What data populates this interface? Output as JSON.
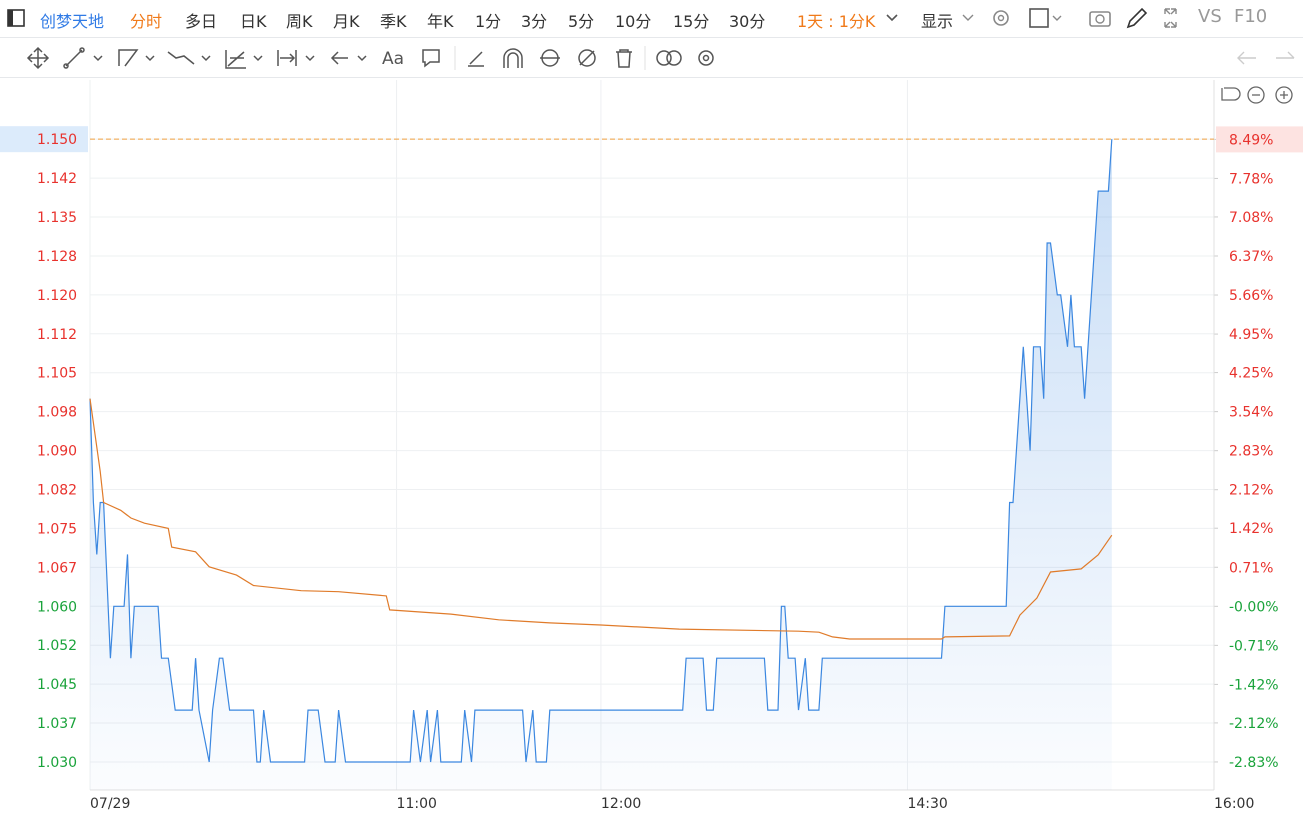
{
  "toolbar": {
    "symbol": "创梦天地",
    "periods": [
      "分时",
      "多日",
      "日K",
      "周K",
      "月K",
      "季K",
      "年K",
      "1分",
      "3分",
      "5分",
      "10分",
      "15分",
      "30分"
    ],
    "interval": "1天 : 1分K",
    "display": "显示",
    "vs": "VS",
    "f10": "F10",
    "text_tool": "Aa"
  },
  "chart_data": {
    "type": "line",
    "xlim": [
      "09:30",
      "16:00"
    ],
    "xticks": [
      {
        "value": "09:30",
        "label": "07/29"
      },
      "11:00",
      "12:00",
      "14:30",
      "16:00"
    ],
    "ylim": [
      1.0246,
      1.1614
    ],
    "yticks": [
      {
        "value": 1.15,
        "label": "1.150"
      },
      {
        "value": 1.1425,
        "label": "1.142"
      },
      {
        "value": 1.135,
        "label": "1.135"
      },
      {
        "value": 1.1275,
        "label": "1.128"
      },
      {
        "value": 1.12,
        "label": "1.120"
      },
      {
        "value": 1.1125,
        "label": "1.112"
      },
      {
        "value": 1.105,
        "label": "1.105"
      },
      {
        "value": 1.0975,
        "label": "1.098"
      },
      {
        "value": 1.09,
        "label": "1.090"
      },
      {
        "value": 1.0825,
        "label": "1.082"
      },
      {
        "value": 1.075,
        "label": "1.075"
      },
      {
        "value": 1.0675,
        "label": "1.067"
      },
      {
        "value": 1.06,
        "label": "1.060"
      },
      {
        "value": 1.0525,
        "label": "1.052"
      },
      {
        "value": 1.045,
        "label": "1.045"
      },
      {
        "value": 1.0375,
        "label": "1.037"
      },
      {
        "value": 1.03,
        "label": "1.030"
      }
    ],
    "y2lim": [
      -3.34,
      9.57
    ],
    "y2ticks": [
      {
        "value": 8.49,
        "label": "8.49%"
      },
      {
        "value": 7.78,
        "label": "7.78%"
      },
      {
        "value": 7.08,
        "label": "7.08%"
      },
      {
        "value": 6.37,
        "label": "6.37%"
      },
      {
        "value": 5.66,
        "label": "5.66%"
      },
      {
        "value": 4.95,
        "label": "4.95%"
      },
      {
        "value": 4.25,
        "label": "4.25%"
      },
      {
        "value": 3.54,
        "label": "3.54%"
      },
      {
        "value": 2.83,
        "label": "2.83%"
      },
      {
        "value": 2.12,
        "label": "2.12%"
      },
      {
        "value": 1.42,
        "label": "1.42%"
      },
      {
        "value": 0.71,
        "label": "0.71%"
      },
      {
        "value": 0,
        "label": "-0.00%"
      },
      {
        "value": -0.71,
        "label": "-0.71%"
      },
      {
        "value": -1.42,
        "label": "-1.42%"
      },
      {
        "value": -2.12,
        "label": "-2.12%"
      },
      {
        "value": -2.83,
        "label": "-2.83%"
      }
    ],
    "up_color": "#e8322d",
    "down_color": "#1aa33b",
    "grid": true,
    "series": [
      {
        "color": "#3b87e0",
        "area": true,
        "x": [
          "09:30",
          "09:31",
          "09:32",
          "09:33",
          "09:34",
          "09:36",
          "09:37",
          "09:40",
          "09:41",
          "09:42",
          "09:43",
          "09:50",
          "09:51",
          "09:53",
          "09:55",
          "10:00",
          "10:01",
          "10:02",
          "10:05",
          "10:06",
          "10:08",
          "10:09",
          "10:11",
          "10:18",
          "10:19",
          "10:20",
          "10:21",
          "10:23",
          "10:33",
          "10:34",
          "10:37",
          "10:39",
          "10:42",
          "10:43",
          "10:45",
          "11:04",
          "11:05",
          "11:07",
          "11:09",
          "11:10",
          "11:12",
          "11:13",
          "11:19",
          "11:20",
          "11:22",
          "11:23",
          "11:37",
          "11:38",
          "11:40",
          "11:41",
          "11:44",
          "11:45",
          "13:24",
          "13:25",
          "13:30",
          "13:31",
          "13:33",
          "13:34",
          "13:48",
          "13:49",
          "13:52",
          "13:53",
          "13:54",
          "13:55",
          "13:57",
          "13:58",
          "14:00",
          "14:01",
          "14:04",
          "14:05",
          "14:40",
          "14:41",
          "14:59",
          "15:00",
          "15:01",
          "15:02",
          "15:04",
          "15:06",
          "15:07",
          "15:09",
          "15:10",
          "15:11",
          "15:12",
          "15:14",
          "15:15",
          "15:17",
          "15:18",
          "15:19",
          "15:21",
          "15:22",
          "15:24",
          "15:26",
          "15:29",
          "15:30"
        ],
        "values": [
          1.1,
          1.08,
          1.07,
          1.08,
          1.08,
          1.05,
          1.06,
          1.06,
          1.07,
          1.05,
          1.06,
          1.06,
          1.05,
          1.05,
          1.04,
          1.04,
          1.05,
          1.04,
          1.03,
          1.04,
          1.05,
          1.05,
          1.04,
          1.04,
          1.03,
          1.03,
          1.04,
          1.03,
          1.03,
          1.04,
          1.04,
          1.03,
          1.03,
          1.04,
          1.03,
          1.03,
          1.04,
          1.03,
          1.04,
          1.03,
          1.04,
          1.03,
          1.03,
          1.04,
          1.03,
          1.04,
          1.04,
          1.03,
          1.04,
          1.03,
          1.03,
          1.04,
          1.04,
          1.05,
          1.05,
          1.04,
          1.04,
          1.05,
          1.05,
          1.04,
          1.04,
          1.06,
          1.06,
          1.05,
          1.05,
          1.04,
          1.05,
          1.04,
          1.04,
          1.05,
          1.05,
          1.06,
          1.06,
          1.08,
          1.08,
          1.09,
          1.11,
          1.09,
          1.11,
          1.11,
          1.1,
          1.13,
          1.13,
          1.12,
          1.12,
          1.11,
          1.12,
          1.11,
          1.11,
          1.1,
          1.12,
          1.14,
          1.14,
          1.15
        ]
      },
      {
        "color": "#e07b2a",
        "area": false,
        "x": [
          "09:30",
          "09:33",
          "09:34",
          "09:39",
          "09:42",
          "09:46",
          "09:53",
          "09:54",
          "10:01",
          "10:05",
          "10:13",
          "10:18",
          "10:32",
          "10:43",
          "10:57",
          "10:58",
          "11:16",
          "11:30",
          "11:45",
          "12:00",
          "13:23",
          "13:58",
          "14:04",
          "14:08",
          "14:13",
          "14:40",
          "14:41",
          "15:00",
          "15:03",
          "15:08",
          "15:12",
          "15:21",
          "15:26",
          "15:30"
        ],
        "values": [
          1.1,
          1.086,
          1.08,
          1.0785,
          1.077,
          1.076,
          1.075,
          1.0714,
          1.0705,
          1.0676,
          1.066,
          1.064,
          1.063,
          1.0628,
          1.062,
          1.0593,
          1.0585,
          1.0574,
          1.0568,
          1.0564,
          1.0556,
          1.0552,
          1.055,
          1.0541,
          1.0537,
          1.0537,
          1.0541,
          1.0543,
          1.0583,
          1.0616,
          1.0666,
          1.0672,
          1.0699,
          1.0737
        ]
      }
    ]
  }
}
